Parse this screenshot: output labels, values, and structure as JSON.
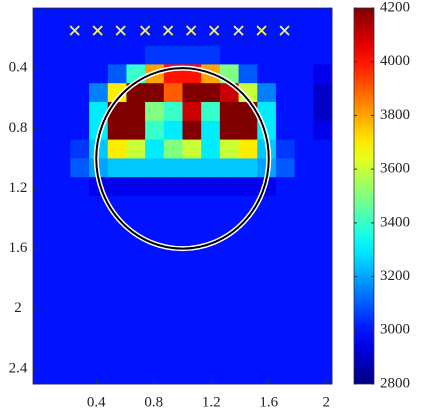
{
  "chart_data": {
    "type": "heatmap",
    "colormap": "jet",
    "clim": [
      2800,
      4200
    ],
    "xlim": [
      -0.04,
      2.04
    ],
    "ylim": [
      0,
      2.5
    ],
    "y_inverted": true,
    "xticks": [
      0.4,
      0.8,
      1.2,
      1.6,
      2
    ],
    "yticks": [
      0.4,
      0.8,
      1.2,
      1.6,
      2,
      2.4
    ],
    "cticks": [
      2800,
      3000,
      3200,
      3400,
      3600,
      3800,
      4000,
      4200
    ],
    "z": [
      [
        3000,
        3000,
        3000,
        3000,
        3000,
        3000,
        3000,
        3000,
        3000,
        3000,
        3000,
        3000,
        3000,
        3000,
        3000,
        3000
      ],
      [
        3000,
        3000,
        3000,
        3000,
        3000,
        3000,
        3000,
        3000,
        3000,
        3000,
        3000,
        3000,
        3000,
        3000,
        3000,
        3000
      ],
      [
        3000,
        3000,
        3000,
        3000,
        3000,
        3000,
        3050,
        3050,
        3050,
        3050,
        3000,
        3000,
        3000,
        3000,
        3000,
        3000
      ],
      [
        3000,
        3000,
        3000,
        3000,
        3100,
        3400,
        3800,
        4000,
        4000,
        3800,
        3500,
        3100,
        3000,
        3000,
        3000,
        2950
      ],
      [
        3000,
        3000,
        3000,
        3150,
        3700,
        4200,
        4200,
        3900,
        4200,
        4200,
        4100,
        3600,
        3150,
        3000,
        3000,
        2900
      ],
      [
        3000,
        3000,
        3000,
        3300,
        4200,
        4200,
        3500,
        3400,
        4100,
        3400,
        4200,
        4200,
        3300,
        3000,
        3000,
        2900
      ],
      [
        3000,
        3000,
        3000,
        3300,
        4200,
        4200,
        3400,
        3300,
        4200,
        3300,
        4200,
        4200,
        3300,
        3000,
        3000,
        2950
      ],
      [
        3000,
        3000,
        3050,
        3250,
        3700,
        3600,
        3300,
        3500,
        3600,
        3300,
        3600,
        3700,
        3250,
        3050,
        3000,
        3000
      ],
      [
        3000,
        3000,
        3100,
        3200,
        3250,
        3250,
        3250,
        3250,
        3250,
        3250,
        3250,
        3250,
        3200,
        3100,
        3000,
        3000
      ],
      [
        3000,
        3000,
        3000,
        2950,
        2950,
        2950,
        2950,
        2950,
        2950,
        2950,
        2950,
        2950,
        2950,
        3000,
        3000,
        3000
      ],
      [
        3000,
        3000,
        3000,
        3000,
        3000,
        3000,
        3000,
        3000,
        3000,
        3000,
        3000,
        3000,
        3000,
        3000,
        3000,
        3000
      ],
      [
        3000,
        3000,
        3000,
        3000,
        3000,
        3000,
        3000,
        3000,
        3000,
        3000,
        3000,
        3000,
        3000,
        3000,
        3000,
        3000
      ],
      [
        3000,
        3000,
        3000,
        3000,
        3000,
        3000,
        3000,
        3000,
        3000,
        3000,
        3000,
        3000,
        3000,
        3000,
        3000,
        3000
      ],
      [
        3000,
        3000,
        3000,
        3000,
        3000,
        3000,
        3000,
        3000,
        3000,
        3000,
        3000,
        3000,
        3000,
        3000,
        3000,
        3000
      ],
      [
        3000,
        3000,
        3000,
        3000,
        3000,
        3000,
        3000,
        3000,
        3000,
        3000,
        3000,
        3000,
        3000,
        3000,
        3000,
        3000
      ],
      [
        3000,
        3000,
        3000,
        3000,
        3000,
        3000,
        3000,
        3000,
        3000,
        3000,
        3000,
        3000,
        3000,
        3000,
        3000,
        3000
      ],
      [
        3000,
        3000,
        3000,
        3000,
        3000,
        3000,
        3000,
        3000,
        3000,
        3000,
        3000,
        3000,
        3000,
        3000,
        3000,
        3000
      ],
      [
        3000,
        3000,
        3000,
        3000,
        3000,
        3000,
        3000,
        3000,
        3000,
        3000,
        3000,
        3000,
        3000,
        3000,
        3000,
        3000
      ],
      [
        3000,
        3000,
        3000,
        3000,
        3000,
        3000,
        3000,
        3000,
        3000,
        3000,
        3000,
        3000,
        3000,
        3000,
        3000,
        3000
      ],
      [
        3000,
        3000,
        3000,
        3000,
        3000,
        3000,
        3000,
        3000,
        3000,
        3000,
        3000,
        3000,
        3000,
        3000,
        3000,
        3000
      ]
    ],
    "markers": {
      "color": "#f0f05a",
      "x": [
        0.25,
        0.41,
        0.57,
        0.74,
        0.9,
        1.06,
        1.22,
        1.39,
        1.55,
        1.71
      ],
      "y": [
        0.15,
        0.15,
        0.15,
        0.15,
        0.15,
        0.15,
        0.15,
        0.15,
        0.15,
        0.15
      ]
    },
    "circle": {
      "center": [
        1,
        1
      ],
      "radius": 0.6
    }
  }
}
